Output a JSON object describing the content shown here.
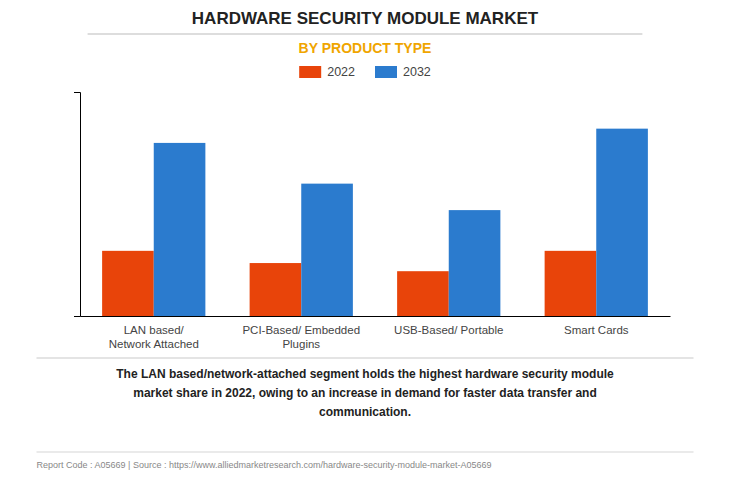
{
  "chart_data": {
    "type": "bar",
    "title": "HARDWARE SECURITY MODULE MARKET",
    "subtitle": "BY PRODUCT TYPE",
    "categories": [
      "LAN based/\nNetwork Attached",
      "PCI-Based/ Embedded\nPlugins",
      "USB-Based/ Portable",
      "Smart Cards"
    ],
    "series": [
      {
        "name": "2022",
        "color": "#e8440a",
        "values": [
          3.2,
          2.6,
          2.2,
          3.2
        ]
      },
      {
        "name": "2032",
        "color": "#2b7bce",
        "values": [
          8.5,
          6.5,
          5.2,
          9.2
        ]
      }
    ],
    "ylim": [
      0,
      11
    ],
    "grid": false,
    "legend": "top",
    "tick_labels": "x",
    "annotations": [
      "The LAN based/network-attached segment holds the highest hardware security module\nmarket share in 2022, owing to an increase in demand for faster data transfer and\ncommunication.",
      "Report Code : A05669  |  Source : https://www.alliedmarketresearch.com/hardware-security-module-market-A05669"
    ]
  }
}
